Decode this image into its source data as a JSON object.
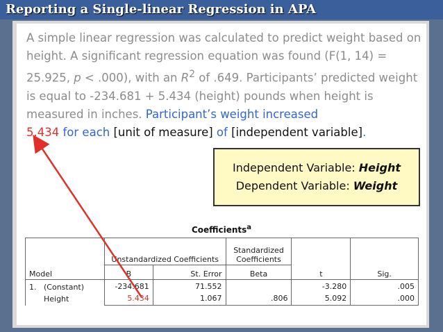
{
  "title": "Reporting a Single-linear Regression in APA",
  "paragraph": [
    "A simple linear regression was calculated to predict weight based on height. A significant regression equation was found (F(1, 14) = 25.925, ",
    "p",
    " < .000), with an ",
    "R",
    "2",
    " of .649. Participants’ predicted weight is equal to -234.681 + 5.434 (height) pounds when height is measured in inches. ",
    "Participant’s weight increased",
    "5.434",
    " for each ",
    "[unit of measure]",
    " of ",
    "[independent variable]",
    "."
  ],
  "callout": [
    {
      "label": "Independent Variable:  ",
      "value": "Height"
    },
    {
      "label": "Dependent Variable: ",
      "value": "Weight"
    }
  ],
  "table": {
    "title": "Coefficients",
    "footnote_mark": "a",
    "groups": [
      "Unstandardized Coefficients",
      "Standardized Coefficients"
    ],
    "columns": [
      "Model",
      "B",
      "St. Error",
      "Beta",
      "t",
      "Sig."
    ],
    "rows": [
      {
        "model": "1.",
        "term": "(Constant)",
        "b": "-234.681",
        "se": "71.552",
        "t": "-3.280",
        "sig": ".005"
      },
      {
        "term": "Height",
        "b": "5.434",
        "se": "1.067",
        "beta": ".806",
        "t": "5.092",
        "sig": ".000"
      }
    ]
  }
}
